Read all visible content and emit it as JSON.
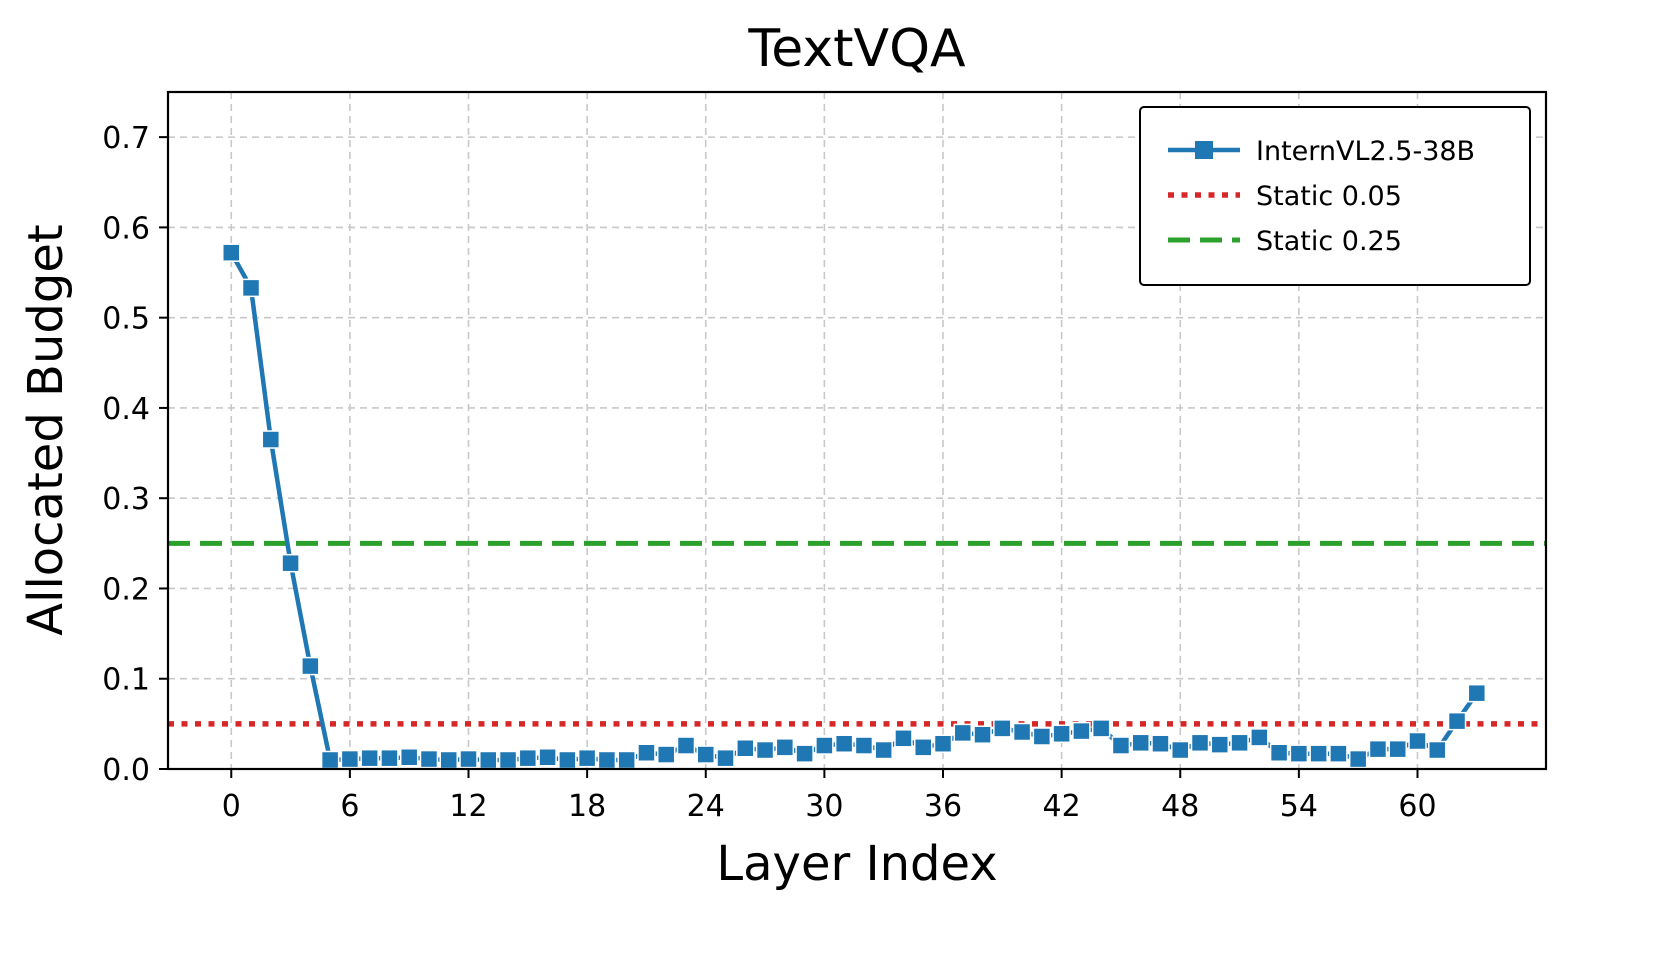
{
  "chart_data": {
    "type": "line",
    "title": "TextVQA",
    "xlabel": "Layer Index",
    "ylabel": "Allocated Budget",
    "xlim": [
      -3.2,
      66.5
    ],
    "ylim": [
      0,
      0.75
    ],
    "xticks": [
      0,
      6,
      12,
      18,
      24,
      30,
      36,
      42,
      48,
      54,
      60
    ],
    "yticks": [
      0.0,
      0.1,
      0.2,
      0.3,
      0.4,
      0.5,
      0.6,
      0.7
    ],
    "ytick_labels": [
      "0.0",
      "0.1",
      "0.2",
      "0.3",
      "0.4",
      "0.5",
      "0.6",
      "0.7"
    ],
    "grid": true,
    "legend_position": "top-right",
    "series": [
      {
        "name": "InternVL2.5-38B",
        "color": "#1f77b4",
        "marker": "square",
        "x": [
          0,
          1,
          2,
          3,
          4,
          5,
          6,
          7,
          8,
          9,
          10,
          11,
          12,
          13,
          14,
          15,
          16,
          17,
          18,
          19,
          20,
          21,
          22,
          23,
          24,
          25,
          26,
          27,
          28,
          29,
          30,
          31,
          32,
          33,
          34,
          35,
          36,
          37,
          38,
          39,
          40,
          41,
          42,
          43,
          44,
          45,
          46,
          47,
          48,
          49,
          50,
          51,
          52,
          53,
          54,
          55,
          56,
          57,
          58,
          59,
          60,
          61,
          62,
          63
        ],
        "values": [
          0.572,
          0.533,
          0.365,
          0.228,
          0.114,
          0.01,
          0.011,
          0.012,
          0.012,
          0.013,
          0.011,
          0.01,
          0.011,
          0.01,
          0.01,
          0.012,
          0.013,
          0.01,
          0.012,
          0.01,
          0.01,
          0.018,
          0.016,
          0.026,
          0.016,
          0.012,
          0.023,
          0.021,
          0.024,
          0.017,
          0.026,
          0.028,
          0.026,
          0.021,
          0.034,
          0.024,
          0.028,
          0.04,
          0.038,
          0.045,
          0.041,
          0.036,
          0.039,
          0.042,
          0.045,
          0.026,
          0.029,
          0.028,
          0.021,
          0.029,
          0.027,
          0.029,
          0.035,
          0.018,
          0.017,
          0.017,
          0.017,
          0.011,
          0.022,
          0.022,
          0.031,
          0.021,
          0.053,
          0.084
        ]
      },
      {
        "name": "Static 0.05",
        "color": "#d62728",
        "style": "dotted",
        "value": 0.05
      },
      {
        "name": "Static 0.25",
        "color": "#2ca02c",
        "style": "dashed",
        "value": 0.25
      }
    ]
  }
}
